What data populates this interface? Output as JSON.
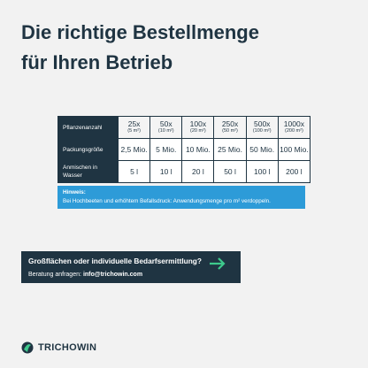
{
  "header": {
    "title_lines": [
      "Die richtige Bestellmenge",
      "für Ihren Betrieb"
    ]
  },
  "table": {
    "header": {
      "label": "Pflanzenanzahl",
      "columns": [
        {
          "count": "25x",
          "area": "(5 m²)"
        },
        {
          "count": "50x",
          "area": "(10 m²)"
        },
        {
          "count": "100x",
          "area": "(20 m²)"
        },
        {
          "count": "250x",
          "area": "(50 m²)"
        },
        {
          "count": "500x",
          "area": "(100 m²)"
        },
        {
          "count": "1000x",
          "area": "(200 m²)"
        }
      ]
    },
    "rows": [
      {
        "label": "Packungsgröße",
        "cells": [
          "2,5 Mio.",
          "5 Mio.",
          "10 Mio.",
          "25 Mio.",
          "50 Mio.",
          "100 Mio."
        ]
      },
      {
        "label": "Anmischen in Wasser",
        "cells": [
          "5 l",
          "10 l",
          "20 l",
          "50 l",
          "100 l",
          "200 l"
        ]
      }
    ]
  },
  "hint": {
    "title": "Hinweis:",
    "text": "Bei Hochbeeten und erhöhtem Befallsdruck: Anwendungsmenge pro m² verdoppeln."
  },
  "cta": {
    "question": "Großflächen oder individuelle Bedarfsermittlung?",
    "prefix": "Beratung anfragen:",
    "email": "info@trichowin.com"
  },
  "logo": {
    "name": "TRICHOWIN"
  }
}
